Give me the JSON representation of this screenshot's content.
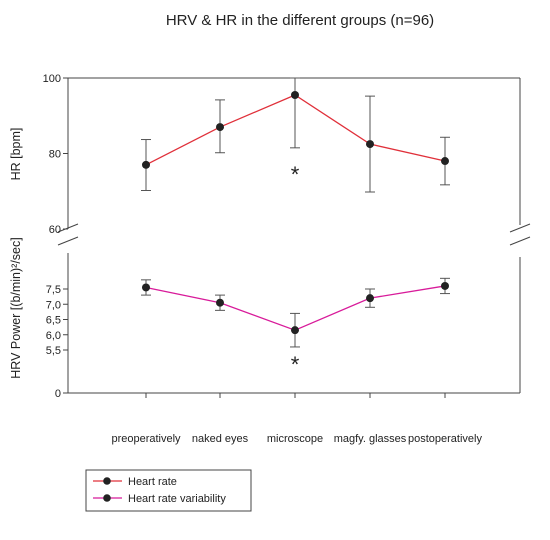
{
  "chart_data": {
    "title": "HRV & HR in the different groups (n=96)",
    "categories": [
      "preoperatively",
      "naked eyes",
      "microscope",
      "magfy. glasses",
      "postoperatively"
    ],
    "panels": [
      {
        "type": "line",
        "ylabel": "HR [bpm]",
        "ylim": [
          60,
          100
        ],
        "yticks": [
          "60",
          "80",
          "100"
        ],
        "series": [
          {
            "name": "Heart rate",
            "color": "#e0303a",
            "values": [
              77,
              87,
              95.5,
              82.5,
              78
            ],
            "err_low": [
              70.2,
              80.2,
              81.5,
              69.8,
              71.7
            ],
            "err_high": [
              83.7,
              94.2,
              100,
              95.2,
              84.3
            ]
          }
        ],
        "annotation": {
          "text": "*",
          "category": "microscope"
        }
      },
      {
        "type": "line",
        "ylabel": "HRV Power [(b/min)²/sec]",
        "ylim": [
          0,
          9
        ],
        "yticks": [
          "0",
          "5,5",
          "6,0",
          "6,5",
          "7,0",
          "7,5"
        ],
        "series": [
          {
            "name": "Heart rate variability",
            "color": "#d81b9a",
            "values": [
              7.55,
              7.05,
              6.15,
              7.2,
              7.6
            ],
            "err_low": [
              7.3,
              6.8,
              5.6,
              6.9,
              7.35
            ],
            "err_high": [
              7.8,
              7.3,
              6.7,
              7.5,
              7.85
            ]
          }
        ],
        "annotation": {
          "text": "*",
          "category": "microscope"
        }
      }
    ],
    "legend": [
      {
        "label": "Heart rate",
        "color": "#e0303a"
      },
      {
        "label": "Heart rate variability",
        "color": "#d81b9a"
      }
    ],
    "legend_position": "bottom-left"
  }
}
